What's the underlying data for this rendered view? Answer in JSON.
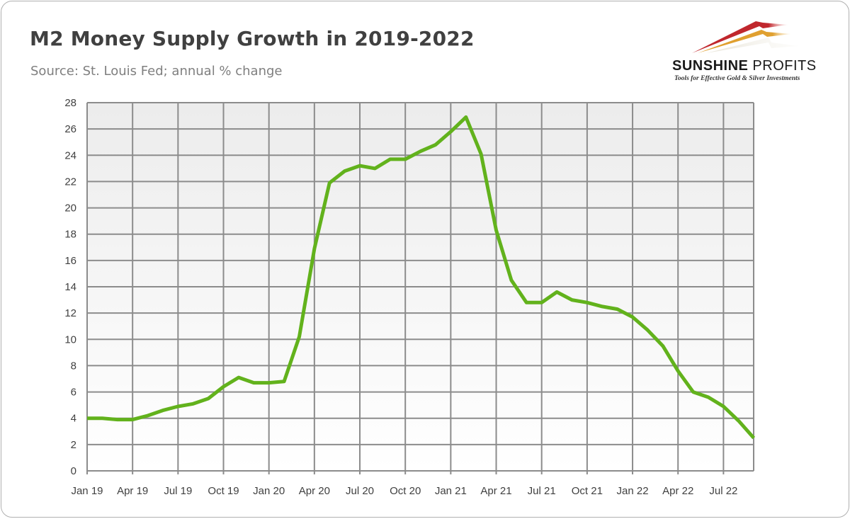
{
  "header": {
    "title": "M2 Money Supply Growth in 2019-2022",
    "subtitle": "Source: St. Louis Fed; annual % change"
  },
  "logo": {
    "name_bold": "SUNSHINE",
    "name_light": "PROFITS",
    "tagline": "Tools for Effective Gold & Silver Investments"
  },
  "colors": {
    "line": "#62b21c",
    "grid": "#8c8c8c"
  },
  "chart_data": {
    "type": "line",
    "title": "M2 Money Supply Growth in 2019-2022",
    "xlabel": "",
    "ylabel": "annual % change",
    "ylim": [
      0,
      28
    ],
    "yticks": [
      0,
      2,
      4,
      6,
      8,
      10,
      12,
      14,
      16,
      18,
      20,
      22,
      24,
      26,
      28
    ],
    "xtick_labels": [
      "Jan 19",
      "Apr 19",
      "Jul 19",
      "Oct 19",
      "Jan 20",
      "Apr 20",
      "Jul 20",
      "Oct 20",
      "Jan 21",
      "Apr 21",
      "Jul 21",
      "Oct 21",
      "Jan 22",
      "Apr 22",
      "Jul 22"
    ],
    "xtick_step_months": 3,
    "grid": true,
    "legend": "none",
    "series": [
      {
        "name": "M2 annual % change",
        "start": "Jan 2019",
        "frequency": "monthly",
        "values": [
          4.0,
          4.0,
          3.9,
          3.9,
          4.2,
          4.6,
          4.9,
          5.1,
          5.5,
          6.4,
          7.1,
          6.7,
          6.7,
          6.8,
          10.2,
          16.9,
          21.9,
          22.8,
          23.2,
          23.0,
          23.7,
          23.7,
          24.3,
          24.8,
          25.8,
          26.9,
          24.1,
          18.3,
          14.5,
          12.8,
          12.8,
          13.6,
          13.0,
          12.8,
          12.5,
          12.3,
          11.7,
          10.7,
          9.5,
          7.6,
          6.0,
          5.6,
          4.9,
          3.8,
          2.5
        ]
      }
    ]
  }
}
